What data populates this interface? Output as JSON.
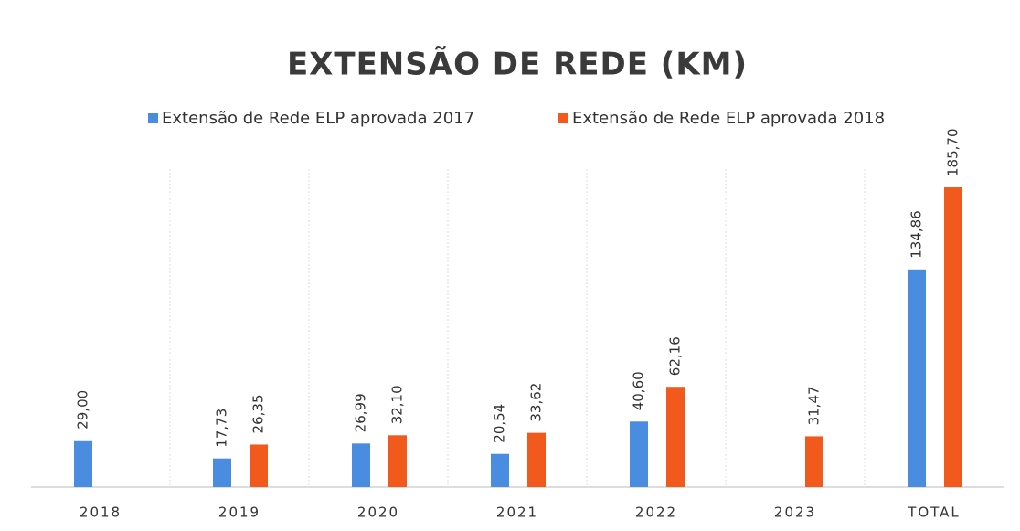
{
  "chart_data": {
    "type": "bar",
    "title": "EXTENSÃO DE REDE (KM)",
    "categories": [
      "2018",
      "2019",
      "2020",
      "2021",
      "2022",
      "2023",
      "TOTAL"
    ],
    "series": [
      {
        "name": "Extensão de Rede ELP aprovada 2017",
        "color": "#4a8de0",
        "values": [
          29.0,
          17.73,
          26.99,
          20.54,
          40.6,
          null,
          134.86
        ],
        "value_labels": [
          "29,00",
          "17,73",
          "26,99",
          "20,54",
          "40,60",
          null,
          "134,86"
        ]
      },
      {
        "name": "Extensão de Rede ELP aprovada 2018",
        "color": "#f25a1d",
        "values": [
          null,
          26.35,
          32.1,
          33.62,
          62.16,
          31.47,
          185.7
        ],
        "value_labels": [
          null,
          "26,35",
          "32,10",
          "33,62",
          "62,16",
          "31,47",
          "185,70"
        ]
      }
    ],
    "legend": "top",
    "grid": true
  }
}
